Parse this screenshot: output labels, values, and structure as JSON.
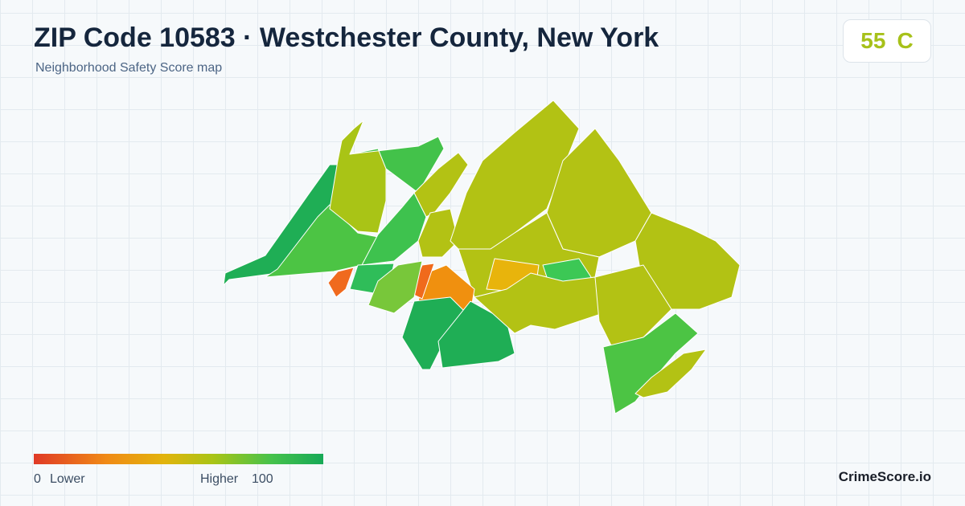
{
  "header": {
    "title": "ZIP Code 10583 · Westchester County, New York",
    "subtitle": "Neighborhood Safety Score map"
  },
  "score": {
    "value": 55,
    "grade": "C"
  },
  "legend": {
    "min": 0,
    "min_label": "Lower",
    "max_label": "Higher",
    "max": 100
  },
  "brand": "CrimeScore.io"
}
